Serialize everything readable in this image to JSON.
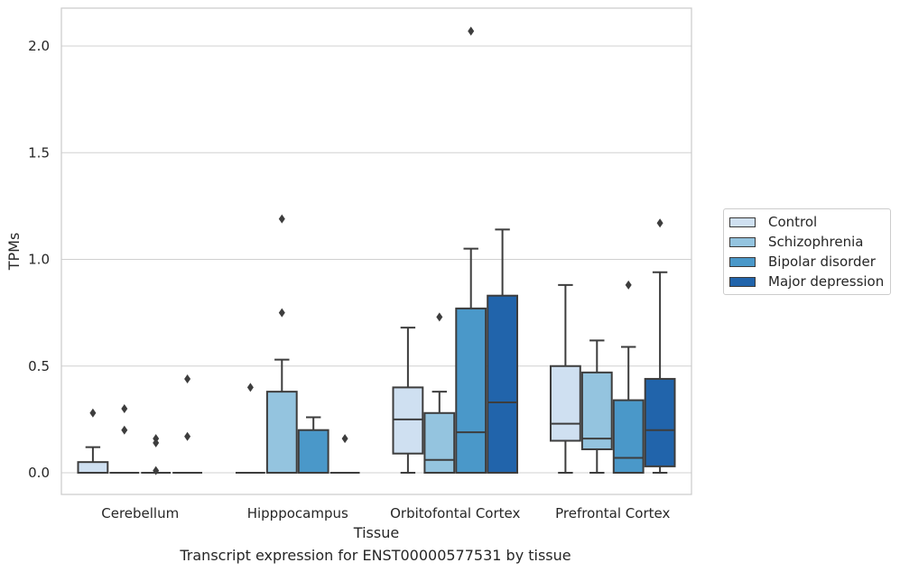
{
  "caption": "Transcript expression for ENST00000577531 by tissue",
  "chart_data": {
    "type": "box",
    "xlabel": "Tissue",
    "ylabel": "TPMs",
    "ylim": [
      -0.1,
      2.18
    ],
    "yticks": [
      0.0,
      0.5,
      1.0,
      1.5,
      2.0
    ],
    "ytick_labels": [
      "0.0",
      "0.5",
      "1.0",
      "1.5",
      "2.0"
    ],
    "grid": "horizontal",
    "legend_position": "right",
    "categories": [
      "Cerebellum",
      "Hipppocampus",
      "Orbitofontal Cortex",
      "Prefrontal Cortex"
    ],
    "series": [
      {
        "name": "Control",
        "color": "#cfe0f1"
      },
      {
        "name": "Schizophrenia",
        "color": "#94c4df"
      },
      {
        "name": "Bipolar disorder",
        "color": "#4a98c9"
      },
      {
        "name": "Major depression",
        "color": "#2164ab"
      }
    ],
    "boxes": [
      [
        {
          "q1": 0.0,
          "median": 0.0,
          "q3": 0.05,
          "whislo": 0.0,
          "whishi": 0.12,
          "fliers": [
            0.28
          ]
        },
        {
          "q1": 0.0,
          "median": 0.0,
          "q3": 0.0,
          "whislo": 0.0,
          "whishi": 0.0,
          "fliers": [
            0.3,
            0.2
          ]
        },
        {
          "q1": 0.0,
          "median": 0.0,
          "q3": 0.0,
          "whislo": 0.0,
          "whishi": 0.0,
          "fliers": [
            0.16,
            0.14,
            0.01
          ]
        },
        {
          "q1": 0.0,
          "median": 0.0,
          "q3": 0.0,
          "whislo": 0.0,
          "whishi": 0.0,
          "fliers": [
            0.44,
            0.17
          ]
        }
      ],
      [
        {
          "q1": 0.0,
          "median": 0.0,
          "q3": 0.0,
          "whislo": 0.0,
          "whishi": 0.0,
          "fliers": [
            0.4
          ]
        },
        {
          "q1": 0.0,
          "median": 0.0,
          "q3": 0.38,
          "whislo": 0.0,
          "whishi": 0.53,
          "fliers": [
            1.19,
            0.75
          ]
        },
        {
          "q1": 0.0,
          "median": 0.0,
          "q3": 0.2,
          "whislo": 0.0,
          "whishi": 0.26,
          "fliers": []
        },
        {
          "q1": 0.0,
          "median": 0.0,
          "q3": 0.0,
          "whislo": 0.0,
          "whishi": 0.0,
          "fliers": [
            0.16
          ]
        }
      ],
      [
        {
          "q1": 0.09,
          "median": 0.25,
          "q3": 0.4,
          "whislo": 0.0,
          "whishi": 0.68,
          "fliers": []
        },
        {
          "q1": 0.0,
          "median": 0.06,
          "q3": 0.28,
          "whislo": 0.0,
          "whishi": 0.38,
          "fliers": [
            0.73
          ]
        },
        {
          "q1": 0.0,
          "median": 0.19,
          "q3": 0.77,
          "whislo": 0.0,
          "whishi": 1.05,
          "fliers": [
            2.07
          ]
        },
        {
          "q1": 0.0,
          "median": 0.33,
          "q3": 0.83,
          "whislo": 0.0,
          "whishi": 1.14,
          "fliers": []
        }
      ],
      [
        {
          "q1": 0.15,
          "median": 0.23,
          "q3": 0.5,
          "whislo": 0.0,
          "whishi": 0.88,
          "fliers": []
        },
        {
          "q1": 0.11,
          "median": 0.16,
          "q3": 0.47,
          "whislo": 0.0,
          "whishi": 0.62,
          "fliers": []
        },
        {
          "q1": 0.0,
          "median": 0.07,
          "q3": 0.34,
          "whislo": 0.0,
          "whishi": 0.59,
          "fliers": [
            0.88
          ]
        },
        {
          "q1": 0.03,
          "median": 0.2,
          "q3": 0.44,
          "whislo": 0.0,
          "whishi": 0.94,
          "fliers": [
            1.17
          ]
        }
      ]
    ]
  }
}
